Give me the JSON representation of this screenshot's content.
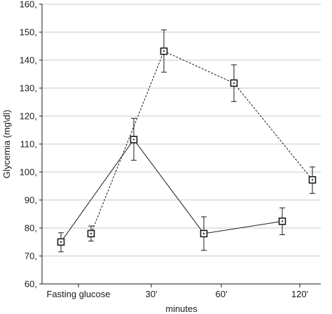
{
  "chart_data": {
    "type": "line",
    "title": "",
    "xlabel": "minutes",
    "ylabel": "Glycemia (mg\\dl)",
    "categories": [
      "Fasting glucose",
      "30'",
      "60'",
      "120'"
    ],
    "ylim": [
      60,
      160
    ],
    "yticks": [
      "60,",
      "70,",
      "80,",
      "90,",
      "100,",
      "110,",
      "120,",
      "130,",
      "140,",
      "150,",
      "160,"
    ],
    "grid": true,
    "legend": "none",
    "series": [
      {
        "style": "solid",
        "color": "#1a1a1a",
        "points": [
          {
            "category": "Fasting glucose",
            "value": 75.0,
            "err_low": 71.5,
            "err_high": 78.3
          },
          {
            "category": "30'",
            "value": 111.6,
            "err_low": 104.2,
            "err_high": 119.2
          },
          {
            "category": "60'",
            "value": 78.0,
            "err_low": 72.0,
            "err_high": 84.0
          },
          {
            "category": "120'",
            "value": 82.4,
            "err_low": 77.6,
            "err_high": 87.2
          }
        ]
      },
      {
        "style": "dashed",
        "color": "#1a1a1a",
        "points": [
          {
            "category": "Fasting glucose",
            "value": 78.0,
            "err_low": 75.3,
            "err_high": 80.7
          },
          {
            "category": "30'",
            "value": 143.2,
            "err_low": 135.7,
            "err_high": 150.8
          },
          {
            "category": "60'",
            "value": 131.8,
            "err_low": 125.2,
            "err_high": 138.3
          },
          {
            "category": "120'",
            "value": 97.2,
            "err_low": 92.4,
            "err_high": 101.8
          }
        ]
      }
    ]
  }
}
